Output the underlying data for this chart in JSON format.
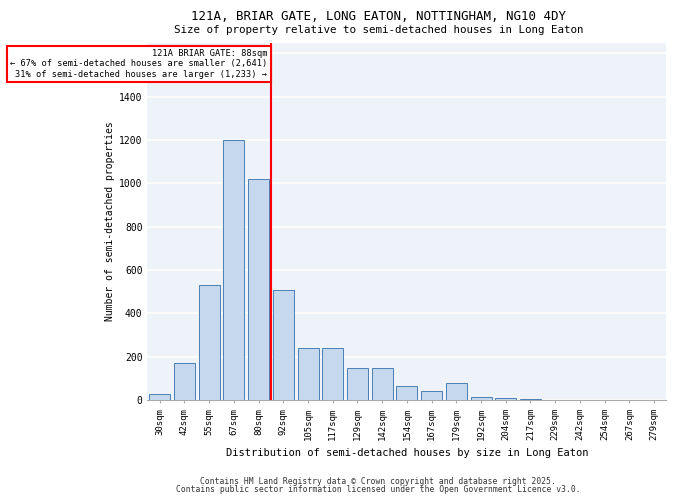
{
  "title1": "121A, BRIAR GATE, LONG EATON, NOTTINGHAM, NG10 4DY",
  "title2": "Size of property relative to semi-detached houses in Long Eaton",
  "xlabel": "Distribution of semi-detached houses by size in Long Eaton",
  "ylabel": "Number of semi-detached properties",
  "footer1": "Contains HM Land Registry data © Crown copyright and database right 2025.",
  "footer2": "Contains public sector information licensed under the Open Government Licence v3.0.",
  "bar_labels": [
    "30sqm",
    "42sqm",
    "55sqm",
    "67sqm",
    "80sqm",
    "92sqm",
    "105sqm",
    "117sqm",
    "129sqm",
    "142sqm",
    "154sqm",
    "167sqm",
    "179sqm",
    "192sqm",
    "204sqm",
    "217sqm",
    "229sqm",
    "242sqm",
    "254sqm",
    "267sqm",
    "279sqm"
  ],
  "bar_values": [
    30,
    170,
    530,
    1200,
    1020,
    510,
    240,
    240,
    150,
    150,
    65,
    40,
    80,
    15,
    10,
    5,
    0,
    0,
    0,
    0,
    0
  ],
  "bar_color": "#c5d8ed",
  "bar_edge_color": "#4a7fb5",
  "marker_label": "121A BRIAR GATE: 88sqm",
  "marker_line_color": "red",
  "annotation_line1": "← 67% of semi-detached houses are smaller (2,641)",
  "annotation_line2": "31% of semi-detached houses are larger (1,233) →",
  "ylim": [
    0,
    1650
  ],
  "yticks": [
    0,
    200,
    400,
    600,
    800,
    1000,
    1200,
    1400,
    1600
  ],
  "background_color": "#eef2f9",
  "grid_color": "white",
  "marker_bar_index": 4
}
